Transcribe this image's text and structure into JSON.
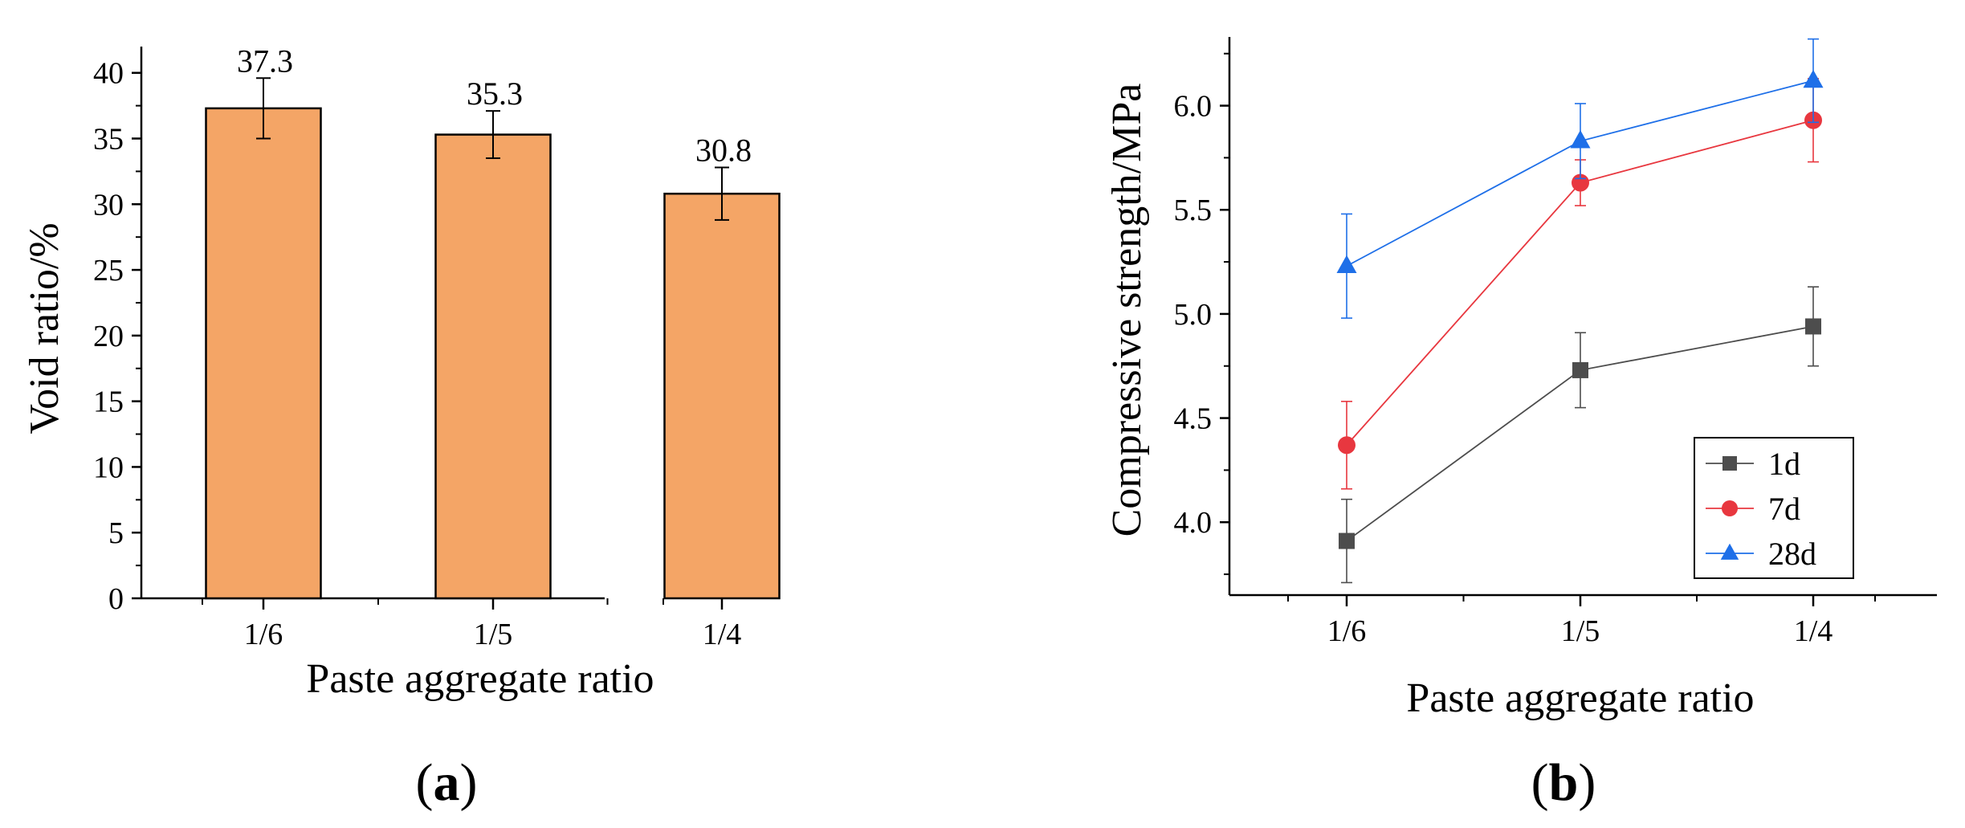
{
  "chart_data": [
    {
      "type": "bar",
      "panel_label": "a",
      "categories": [
        "1/6",
        "1/5",
        "1/4"
      ],
      "values": [
        37.3,
        35.3,
        30.8
      ],
      "errors": [
        2.3,
        1.8,
        2.0
      ],
      "data_labels": [
        "37.3",
        "35.3",
        "30.8"
      ],
      "title": "",
      "xlabel": "Paste aggregate ratio",
      "ylabel": "Void ratio/%",
      "ylim": [
        0,
        42
      ],
      "yticks": [
        0,
        5,
        10,
        15,
        20,
        25,
        30,
        35,
        40
      ],
      "ytick_labels": [
        "0",
        "5",
        "10",
        "15",
        "20",
        "25",
        "30",
        "35",
        "40"
      ],
      "bar_color": "#F4A566",
      "grid": false
    },
    {
      "type": "line",
      "panel_label": "b",
      "categories": [
        "1/6",
        "1/5",
        "1/4"
      ],
      "series": [
        {
          "name": "1d",
          "values": [
            3.91,
            4.73,
            4.94
          ],
          "errors": [
            0.2,
            0.18,
            0.19
          ],
          "color": "#4D4D4D",
          "marker": "square"
        },
        {
          "name": "7d",
          "values": [
            4.37,
            5.63,
            5.93
          ],
          "errors": [
            0.21,
            0.11,
            0.2
          ],
          "color": "#E8373F",
          "marker": "circle"
        },
        {
          "name": "28d",
          "values": [
            5.23,
            5.83,
            6.12
          ],
          "errors": [
            0.25,
            0.18,
            0.2
          ],
          "color": "#1E6FE8",
          "marker": "triangle"
        }
      ],
      "title": "",
      "xlabel": "Paste aggregate ratio",
      "ylabel": "Compressive strength/MPa",
      "ylim": [
        3.65,
        6.33
      ],
      "yticks": [
        4.0,
        4.5,
        5.0,
        5.5,
        6.0
      ],
      "ytick_labels": [
        "4.0",
        "4.5",
        "5.0",
        "5.5",
        "6.0"
      ],
      "legend_position": "bottom-right",
      "grid": false
    }
  ]
}
